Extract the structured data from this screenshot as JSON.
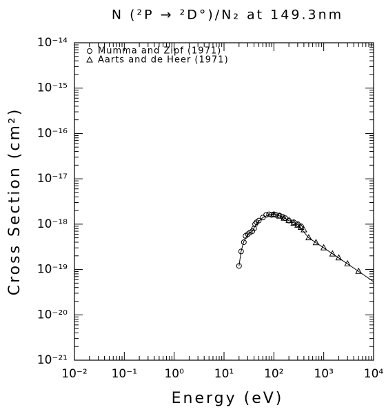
{
  "chart_data": {
    "type": "scatter",
    "title": "N (²P → ²D°)/N₂ at 149.3nm",
    "x_label": "Energy (eV)",
    "y_label": "Cross Section (cm²)",
    "xscale": "log",
    "yscale": "log",
    "xlim": [
      0.01,
      10000
    ],
    "ylim": [
      1e-21,
      1e-14
    ],
    "xticks": [
      {
        "value": 0.01,
        "label": "10⁻²"
      },
      {
        "value": 0.1,
        "label": "10⁻¹"
      },
      {
        "value": 1,
        "label": "10⁰"
      },
      {
        "value": 10,
        "label": "10¹"
      },
      {
        "value": 100,
        "label": "10²"
      },
      {
        "value": 1000,
        "label": "10³"
      },
      {
        "value": 10000,
        "label": "10⁴"
      }
    ],
    "yticks": [
      {
        "value": 1e-21,
        "label": "10⁻²¹"
      },
      {
        "value": 1e-20,
        "label": "10⁻²⁰"
      },
      {
        "value": 1e-19,
        "label": "10⁻¹⁹"
      },
      {
        "value": 1e-18,
        "label": "10⁻¹⁸"
      },
      {
        "value": 1e-17,
        "label": "10⁻¹⁷"
      },
      {
        "value": 1e-16,
        "label": "10⁻¹⁶"
      },
      {
        "value": 1e-15,
        "label": "10⁻¹⁵"
      },
      {
        "value": 1e-14,
        "label": "10⁻¹⁴"
      }
    ],
    "minor_ticks": true,
    "legend": "upper left",
    "series": [
      {
        "name": "Mumma and Zipf (1971)",
        "marker": "circle",
        "color": "#000000",
        "x": [
          20,
          22,
          25,
          27,
          30,
          33,
          37,
          40,
          42,
          45,
          50,
          60,
          70,
          80,
          90,
          100,
          110,
          130,
          150,
          170,
          200,
          250,
          300,
          350
        ],
        "values": [
          1.2e-19,
          2.5e-19,
          4e-19,
          5.5e-19,
          6e-19,
          6.5e-19,
          7e-19,
          8e-19,
          1e-18,
          1.1e-18,
          1.2e-18,
          1.4e-18,
          1.6e-18,
          1.65e-18,
          1.6e-18,
          1.65e-18,
          1.6e-18,
          1.55e-18,
          1.45e-18,
          1.35e-18,
          1.2e-18,
          1.1e-18,
          1e-18,
          9e-19
        ]
      },
      {
        "name": "Aarts and de Heer (1971)",
        "marker": "triangle",
        "color": "#000000",
        "x": [
          100,
          130,
          160,
          200,
          250,
          300,
          350,
          400,
          500,
          700,
          1000,
          1500,
          2000,
          3000,
          5000
        ],
        "values": [
          1.6e-18,
          1.5e-18,
          1.35e-18,
          1.2e-18,
          1.05e-18,
          9.5e-19,
          8.5e-19,
          7.5e-19,
          5e-19,
          3.9e-19,
          3e-19,
          2.2e-19,
          1.8e-19,
          1.33e-19,
          9.1e-20
        ]
      }
    ],
    "curve": {
      "color": "#000000",
      "x": [
        20,
        22,
        25,
        30,
        37,
        45,
        60,
        80,
        100,
        150,
        200,
        300,
        500,
        1000,
        2000,
        5000,
        10000
      ],
      "values": [
        1.2e-19,
        2.5e-19,
        4.2e-19,
        6e-19,
        7e-19,
        1.05e-18,
        1.4e-18,
        1.62e-18,
        1.65e-18,
        1.45e-18,
        1.2e-18,
        9.8e-19,
        5e-19,
        3e-19,
        1.8e-19,
        9.1e-20,
        5.4e-20
      ]
    }
  }
}
